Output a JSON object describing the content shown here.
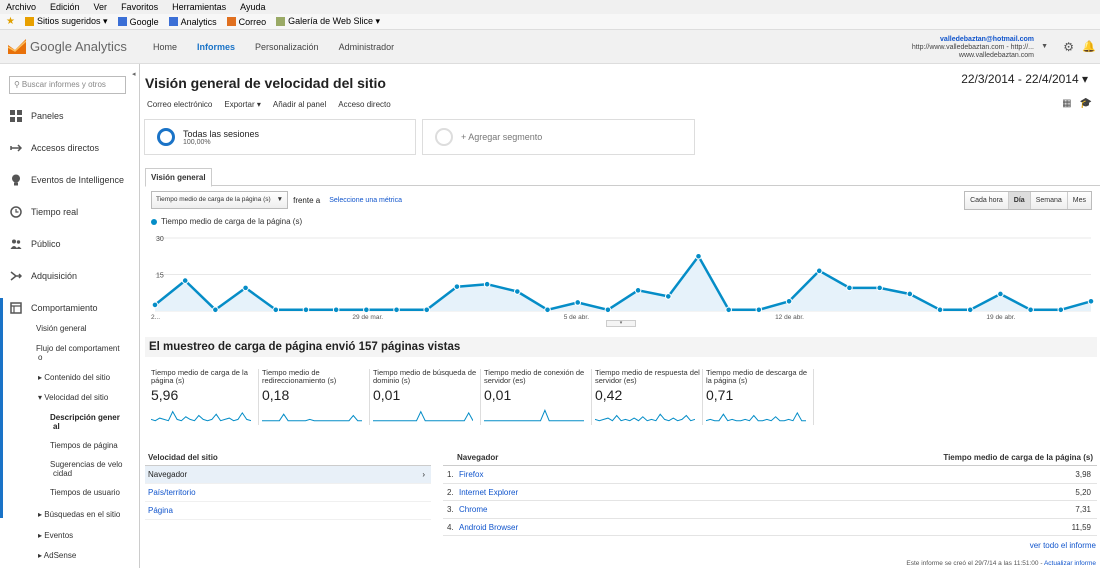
{
  "browser": {
    "menu": [
      "Archivo",
      "Edición",
      "Ver",
      "Favoritos",
      "Herramientas",
      "Ayuda"
    ],
    "favorites": [
      {
        "label": "Sitios sugeridos ▾",
        "icon": "star-icon"
      },
      {
        "label": "Google",
        "icon": "google-icon"
      },
      {
        "label": "Analytics",
        "icon": "analytics-icon"
      },
      {
        "label": "Correo",
        "icon": "mail-icon"
      },
      {
        "label": "Galería de Web Slice ▾",
        "icon": "webslice-icon"
      }
    ]
  },
  "header": {
    "logo": "Google Analytics",
    "tabs": [
      "Home",
      "Informes",
      "Personalización",
      "Administrador"
    ],
    "active_tab": "Informes",
    "account_email": "valledebaztan@hotmail.com",
    "account_url": "http://www.valledebaztan.com - http://...",
    "account_site": "www.valledebaztan.com"
  },
  "sidebar": {
    "search_placeholder": "Buscar informes y otros",
    "items": [
      {
        "label": "Paneles",
        "icon": "grid-icon"
      },
      {
        "label": "Accesos directos",
        "icon": "shortcut-icon"
      },
      {
        "label": "Eventos de Intelligence",
        "icon": "bulb-icon"
      },
      {
        "label": "Tiempo real",
        "icon": "clock-icon"
      },
      {
        "label": "Público",
        "icon": "people-icon"
      },
      {
        "label": "Adquisición",
        "icon": "acquisition-icon"
      },
      {
        "label": "Comportamiento",
        "icon": "behavior-icon"
      }
    ],
    "behavior_sub": {
      "overview": "Visión general",
      "flow_line1": "Flujo del comportament",
      "flow_line2": "o",
      "content": "▸ Contenido del sitio",
      "speed": "▾ Velocidad del sitio",
      "speed_overview_line1": "Descripción gener",
      "speed_overview_line2": "al",
      "page_timings": "Tiempos de página",
      "suggestions_line1": "Sugerencias de velo",
      "suggestions_line2": "cidad",
      "user_timings": "Tiempos de usuario",
      "search": "▸ Búsquedas en el sitio",
      "events": "▸ Eventos",
      "adsense": "▸ AdSense"
    }
  },
  "main": {
    "title": "Visión general de velocidad del sitio",
    "date_range": "22/3/2014 - 22/4/2014 ▾",
    "actions": [
      "Correo electrónico",
      "Exportar ▾",
      "Añadir al panel",
      "Acceso directo"
    ],
    "segments": {
      "all_label": "Todas las sesiones",
      "all_pct": "100,00%",
      "add_label": "+ Agregar segmento"
    },
    "tab": "Visión general",
    "metric_select": "Tiempo medio de carga de la página (s)",
    "versus": "frente a",
    "select_metric": "Seleccione una métrica",
    "granularity": [
      "Cada hora",
      "Día",
      "Semana",
      "Mes"
    ],
    "granularity_active": "Día"
  },
  "chart_data": {
    "type": "area",
    "title": "",
    "legend": [
      "Tiempo medio de carga de la página (s)"
    ],
    "ylim": [
      0,
      30
    ],
    "yticks": [
      "30",
      "15"
    ],
    "xticks": [
      "2...",
      "29 de mar.",
      "5 de abr.",
      "12 de abr.",
      "19 de abr."
    ],
    "series": [
      {
        "name": "Tiempo medio de carga de la página (s)",
        "values": [
          2.5,
          12.5,
          0.5,
          9.5,
          0.5,
          0.5,
          0.5,
          0.5,
          0.5,
          0.5,
          10,
          11,
          8,
          0.5,
          3.5,
          0.5,
          8.5,
          6,
          22.5,
          0.5,
          0.5,
          4,
          16.5,
          9.5,
          9.5,
          7,
          0.5,
          0.5,
          7,
          0.5,
          0.5,
          4
        ]
      }
    ]
  },
  "summary": {
    "title": "El muestreo de carga de página envió 157 páginas vistas",
    "metrics": [
      {
        "label": "Tiempo medio de carga de la página (s)",
        "value": "5,96"
      },
      {
        "label": "Tiempo medio de redireccionamiento (s)",
        "value": "0,18"
      },
      {
        "label": "Tiempo medio de búsqueda de dominio (s)",
        "value": "0,01"
      },
      {
        "label": "Tiempo medio de conexión de servidor (es)",
        "value": "0,01"
      },
      {
        "label": "Tiempo medio de respuesta del servidor (es)",
        "value": "0,42"
      },
      {
        "label": "Tiempo medio de descarga de la página (s)",
        "value": "0,71"
      }
    ]
  },
  "left_table": {
    "header": "Velocidad del sitio",
    "rows": [
      "Navegador",
      "País/territorio",
      "Página"
    ]
  },
  "right_table": {
    "header_col1": "Navegador",
    "header_col2": "Tiempo medio de carga de la página (s)",
    "rows": [
      {
        "n": "1.",
        "browser": "Firefox",
        "value": "3,98"
      },
      {
        "n": "2.",
        "browser": "Internet Explorer",
        "value": "5,20"
      },
      {
        "n": "3.",
        "browser": "Chrome",
        "value": "7,31"
      },
      {
        "n": "4.",
        "browser": "Android Browser",
        "value": "11,59"
      }
    ],
    "view_all": "ver todo el informe"
  },
  "footer": {
    "text": "Este informe se creó el 29/7/14 a las 11:51:00 -",
    "link": "Actualizar informe"
  }
}
